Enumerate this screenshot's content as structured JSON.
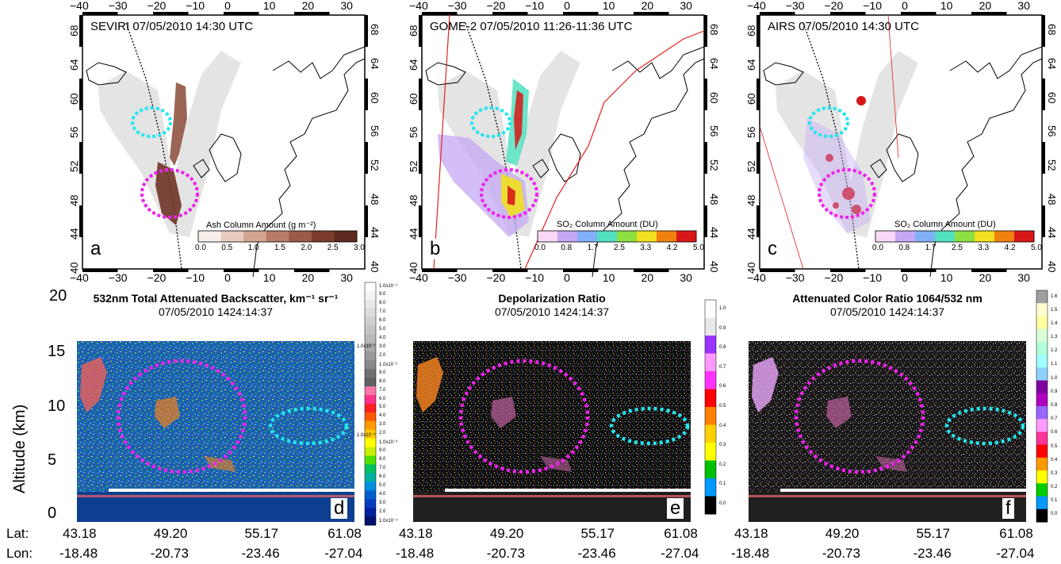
{
  "maps": [
    {
      "id": "a",
      "title": "SEVIRI 07/05/2010 14:30 UTC",
      "letter": "a",
      "colorbar_label": "Ash Column Amount (g m⁻²)",
      "colorbar_ticks": [
        "0.0",
        "0.5",
        "1.0",
        "1.5",
        "2.0",
        "2.5",
        "3.0"
      ],
      "colors": [
        "#f6eeea",
        "#e7cbbf",
        "#d1a491",
        "#b77c66",
        "#9b5a46",
        "#7c3d2e",
        "#5e2a20"
      ]
    },
    {
      "id": "b",
      "title": "GOME-2 07/05/2010 11:26-11:36 UTC",
      "letter": "b",
      "colorbar_label": "SO₂ Column Amount (DU)",
      "colorbar_ticks": [
        "0.0",
        "0.8",
        "1.7",
        "2.5",
        "3.3",
        "4.2",
        "5.0"
      ],
      "colors": [
        "#f8d8f6",
        "#c4a8f4",
        "#7fb0f8",
        "#52e0c0",
        "#8ee040",
        "#f0e020",
        "#f08010",
        "#d81818"
      ]
    },
    {
      "id": "c",
      "title": "AIRS 07/05/2010 14:30 UTC",
      "letter": "c",
      "colorbar_label": "SO₂ Column Amount (DU)",
      "colorbar_ticks": [
        "0.0",
        "0.8",
        "1.7",
        "2.5",
        "3.3",
        "4.2",
        "5.0"
      ],
      "colors": [
        "#f8d8f6",
        "#c4a8f4",
        "#7fb0f8",
        "#52e0c0",
        "#8ee040",
        "#f0e020",
        "#f08010",
        "#d81818"
      ]
    }
  ],
  "map_lon_ticks": [
    "−40",
    "−30",
    "−20",
    "−10",
    "0",
    "10",
    "20",
    "30"
  ],
  "map_lat_ticks": [
    "40",
    "44",
    "48",
    "52",
    "56",
    "60",
    "64",
    "68"
  ],
  "curtains": [
    {
      "id": "d",
      "title": "532nm Total Attenuated Backscatter, km⁻¹ sr⁻¹",
      "subtitle": "07/05/2010 1424:14:37",
      "letter": "d",
      "legend_ticks": [
        "1.0x10⁻¹",
        "9.0",
        "8.0",
        "7.0",
        "6.0",
        "5.0",
        "4.0",
        "3.0",
        "2.0",
        "1.0x10⁻²",
        "9.0",
        "8.0",
        "7.0",
        "6.0",
        "5.0",
        "4.0",
        "3.0",
        "2.0",
        "1.0x10⁻³",
        "9.0",
        "8.0",
        "7.0",
        "6.0",
        "5.0",
        "4.0",
        "3.0",
        "2.0",
        "1.0x10⁻⁴"
      ],
      "side_ticks": [
        "1.0x10⁻²",
        "1.0x10⁻³"
      ]
    },
    {
      "id": "e",
      "title": "Depolarization Ratio",
      "subtitle": "07/05/2010 1424:14:37",
      "letter": "e",
      "legend_ticks": [
        "1.0",
        "0.9",
        "0.8",
        "0.7",
        "0.6",
        "0.5",
        "0.4",
        "0.3",
        "0.2",
        "0.1",
        "0.0"
      ]
    },
    {
      "id": "f",
      "title": "Attenuated Color Ratio 1064/532 nm",
      "subtitle": "07/05/2010 1424:14:37",
      "letter": "f",
      "legend_ticks": [
        "1.6",
        "1.5",
        "1.4",
        "1.3",
        "1.2",
        "1.1",
        "1.0",
        "0.9",
        "0.8",
        "0.7",
        "0.6",
        "0.5",
        "0.4",
        "0.3",
        "0.2",
        "0.1",
        "0.0"
      ]
    }
  ],
  "altitude_label": "Altitude (km)",
  "altitude_ticks": [
    "20",
    "15",
    "10",
    "5",
    "0"
  ],
  "lat_label": "Lat:",
  "lon_label": "Lon:",
  "lat_values": [
    "43.18",
    "49.20",
    "55.17",
    "61.08"
  ],
  "lon_values": [
    "-18.48",
    "-20.73",
    "-23.46",
    "-27.04"
  ],
  "colors": {
    "magenta_circle": "#ee22ee",
    "cyan_circle": "#22e6f0",
    "calipso_track": "#000000",
    "swath_edge": "#e02020",
    "plume_region": "#e4e4e4"
  }
}
